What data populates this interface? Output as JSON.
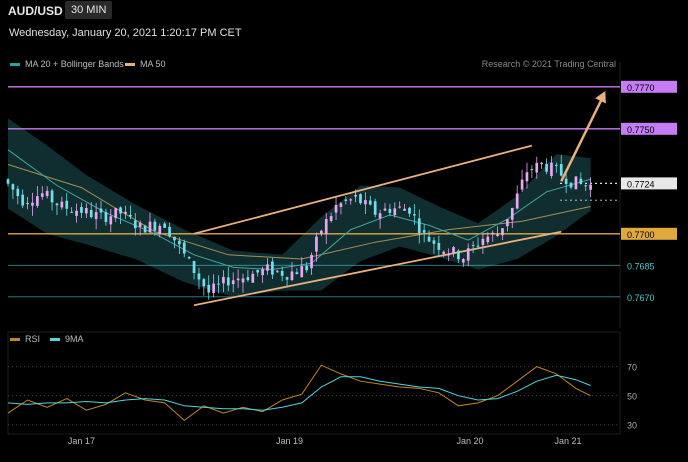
{
  "header": {
    "symbol": "AUD/USD",
    "timeframe": "30 MIN",
    "datetime": "Wednesday, January 20, 2021 1:20:17 PM CET",
    "credit": "Research © 2021 Trading Central"
  },
  "legend": {
    "ma20": "MA 20 + Bollinger Bands",
    "ma50": "MA 50",
    "rsi": "RSI",
    "rsi_ma": "9MA"
  },
  "colors": {
    "background": "#000000",
    "bull": "#e9a6f2",
    "bear": "#6fe0ea",
    "bollinger": "#153d40",
    "ma20": "#3fa7a0",
    "ma50": "#c9a85a",
    "channel": "#e8b07c",
    "resistance": "#c67cf5",
    "support": "#e0a93e",
    "pivot": "#dcdcdc",
    "target": "#47c7d0"
  },
  "chart_data": [
    {
      "type": "candlestick",
      "x_labels": [
        "Jan 17",
        "Jan 19",
        "Jan 20",
        "Jan 21"
      ],
      "ylim": [
        0.7658,
        0.7778
      ],
      "levels": [
        {
          "value": 0.777,
          "label": "0.7770",
          "kind": "resistance"
        },
        {
          "value": 0.775,
          "label": "0.7750",
          "kind": "resistance"
        },
        {
          "value": 0.7724,
          "label": "0.7724",
          "kind": "pivot"
        },
        {
          "value": 0.77,
          "label": "0.7700",
          "kind": "support"
        },
        {
          "value": 0.7685,
          "label": "0.7685",
          "kind": "target"
        },
        {
          "value": 0.767,
          "label": "0.7670",
          "kind": "target"
        }
      ],
      "price_path": [
        [
          0,
          0.7726
        ],
        [
          4,
          0.7716
        ],
        [
          8,
          0.7719
        ],
        [
          12,
          0.7713
        ],
        [
          16,
          0.7711
        ],
        [
          20,
          0.7708
        ],
        [
          24,
          0.771
        ],
        [
          28,
          0.7703
        ],
        [
          33,
          0.7705
        ],
        [
          38,
          0.7686
        ],
        [
          42,
          0.7672
        ],
        [
          46,
          0.7678
        ],
        [
          50,
          0.768
        ],
        [
          54,
          0.7683
        ],
        [
          58,
          0.7681
        ],
        [
          62,
          0.7684
        ],
        [
          65,
          0.7702
        ],
        [
          68,
          0.7713
        ],
        [
          72,
          0.7717
        ],
        [
          76,
          0.771
        ],
        [
          79,
          0.7712
        ],
        [
          83,
          0.7712
        ],
        [
          86,
          0.7699
        ],
        [
          90,
          0.7693
        ],
        [
          94,
          0.7689
        ],
        [
          98,
          0.7698
        ],
        [
          101,
          0.77
        ],
        [
          104,
          0.7712
        ],
        [
          107,
          0.773
        ],
        [
          110,
          0.7733
        ],
        [
          113,
          0.773
        ],
        [
          116,
          0.7725
        ],
        [
          119,
          0.7723
        ]
      ],
      "ma20_path": [
        [
          0,
          0.774
        ],
        [
          10,
          0.7723
        ],
        [
          20,
          0.771
        ],
        [
          30,
          0.77
        ],
        [
          38,
          0.769
        ],
        [
          46,
          0.7684
        ],
        [
          54,
          0.7683
        ],
        [
          62,
          0.7686
        ],
        [
          70,
          0.7702
        ],
        [
          78,
          0.7709
        ],
        [
          86,
          0.7704
        ],
        [
          94,
          0.7697
        ],
        [
          102,
          0.7707
        ],
        [
          110,
          0.772
        ],
        [
          119,
          0.7726
        ]
      ],
      "ma50_path": [
        [
          0,
          0.7733
        ],
        [
          15,
          0.7722
        ],
        [
          30,
          0.7701
        ],
        [
          45,
          0.769
        ],
        [
          60,
          0.7688
        ],
        [
          75,
          0.7696
        ],
        [
          90,
          0.7702
        ],
        [
          105,
          0.7706
        ],
        [
          119,
          0.7713
        ]
      ],
      "bb_upper": [
        [
          0,
          0.7755
        ],
        [
          8,
          0.7742
        ],
        [
          16,
          0.7728
        ],
        [
          26,
          0.7714
        ],
        [
          36,
          0.7702
        ],
        [
          46,
          0.7692
        ],
        [
          56,
          0.769
        ],
        [
          64,
          0.7708
        ],
        [
          72,
          0.7723
        ],
        [
          80,
          0.7722
        ],
        [
          88,
          0.7713
        ],
        [
          96,
          0.7705
        ],
        [
          104,
          0.7718
        ],
        [
          112,
          0.7738
        ],
        [
          119,
          0.7736
        ]
      ],
      "bb_lower": [
        [
          0,
          0.7712
        ],
        [
          8,
          0.77
        ],
        [
          16,
          0.7695
        ],
        [
          26,
          0.7688
        ],
        [
          36,
          0.7677
        ],
        [
          46,
          0.767
        ],
        [
          56,
          0.7673
        ],
        [
          64,
          0.7673
        ],
        [
          72,
          0.7687
        ],
        [
          80,
          0.7694
        ],
        [
          88,
          0.7689
        ],
        [
          96,
          0.7683
        ],
        [
          104,
          0.7688
        ],
        [
          112,
          0.7699
        ],
        [
          119,
          0.7711
        ]
      ],
      "channel_upper": [
        [
          38,
          0.77
        ],
        [
          107,
          0.7742
        ]
      ],
      "channel_lower": [
        [
          38,
          0.7666
        ],
        [
          113,
          0.7701
        ]
      ],
      "forecast_arrow": [
        [
          113,
          0.7725
        ],
        [
          122,
          0.7768
        ]
      ]
    },
    {
      "type": "line",
      "series": [
        {
          "name": "RSI",
          "values": [
            38,
            47,
            42,
            48,
            40,
            44,
            52,
            47,
            45,
            33,
            43,
            38,
            42,
            39,
            47,
            51,
            71,
            65,
            60,
            58,
            56,
            55,
            52,
            43,
            45,
            50,
            60,
            70,
            65,
            55,
            50
          ]
        },
        {
          "name": "9MA",
          "values": [
            45,
            44,
            45,
            45,
            46,
            45,
            47,
            48,
            47,
            43,
            42,
            41,
            41,
            40,
            42,
            45,
            56,
            63,
            63,
            60,
            58,
            56,
            55,
            50,
            47,
            48,
            53,
            60,
            64,
            61,
            57
          ]
        }
      ],
      "x": [
        0,
        4,
        8,
        12,
        16,
        20,
        24,
        28,
        32,
        36,
        40,
        44,
        48,
        52,
        56,
        60,
        64,
        68,
        72,
        76,
        80,
        84,
        88,
        92,
        96,
        100,
        104,
        108,
        112,
        116,
        119
      ],
      "ylim": [
        25,
        78
      ],
      "yticks": [
        70,
        50,
        30
      ]
    }
  ]
}
